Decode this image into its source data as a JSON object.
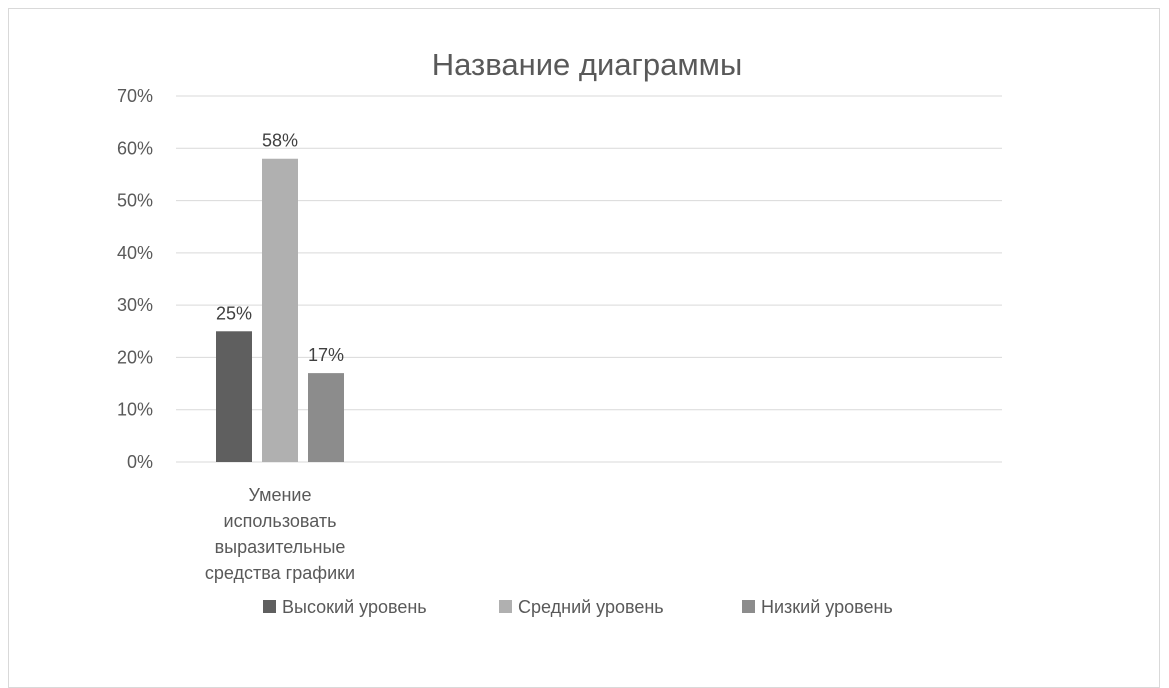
{
  "chart_data": {
    "type": "bar",
    "title": "Название диаграммы",
    "categories": [
      "Умение использовать выразительные средства графики"
    ],
    "category_label_lines": [
      [
        "Умение",
        "использовать",
        "выразительные",
        "средства графики"
      ]
    ],
    "series": [
      {
        "name": "Высокий уровень",
        "values": [
          25
        ],
        "labels": [
          "25%"
        ],
        "color": "#5f5f5f"
      },
      {
        "name": "Средний уровень",
        "values": [
          58
        ],
        "labels": [
          "58%"
        ],
        "color": "#b0b0b0"
      },
      {
        "name": "Низкий уровень",
        "values": [
          17
        ],
        "labels": [
          "17%"
        ],
        "color": "#8c8c8c"
      }
    ],
    "ylim": [
      0,
      70
    ],
    "yticks": [
      0,
      10,
      20,
      30,
      40,
      50,
      60,
      70
    ],
    "ytick_labels": [
      "0%",
      "10%",
      "20%",
      "30%",
      "40%",
      "50%",
      "60%",
      "70%"
    ],
    "xlabel": "",
    "ylabel": "",
    "grid": true,
    "legend": "bottom",
    "colors": {
      "grid": "#d9d9d9",
      "text": "#595959",
      "label": "#404040"
    }
  }
}
